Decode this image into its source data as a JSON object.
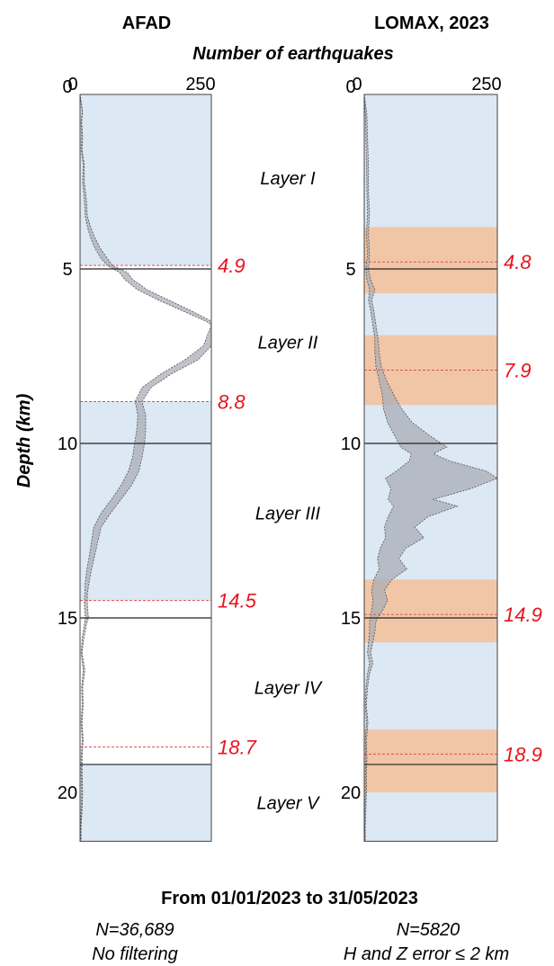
{
  "figure": {
    "xlabel": "Number of earthquakes",
    "ylabel": "Depth (km)",
    "date_range": "From 01/01/2023 to 31/05/2023",
    "colors": {
      "blue_band": "#dce8f4",
      "orange_band": "#f5bf98",
      "red_text": "#e8141e",
      "profile_fill": "#a9aeb6",
      "boundary_dash": "#e05050"
    }
  },
  "layers": [
    {
      "label": "Layer I",
      "depth": 2.4
    },
    {
      "label": "Layer II",
      "depth": 7.1
    },
    {
      "label": "Layer III",
      "depth": 12.0
    },
    {
      "label": "Layer IV",
      "depth": 17.0
    },
    {
      "label": "Layer V",
      "depth": 20.3
    }
  ],
  "chart_data": [
    {
      "type": "area",
      "title": "AFAD",
      "xlim": [
        0,
        250
      ],
      "ylim": [
        0,
        21.4
      ],
      "x_ticks": [
        "0",
        "250"
      ],
      "y_ticks": [
        0,
        5,
        10,
        15,
        20
      ],
      "n_label": "N=36,689",
      "filter_label": "No filtering",
      "boundaries": [
        {
          "depth": 4.9,
          "label": "4.9"
        },
        {
          "depth": 8.8,
          "label": "8.8"
        },
        {
          "depth": 14.5,
          "label": "14.5"
        },
        {
          "depth": 18.7,
          "label": "18.7"
        }
      ],
      "solid_lines": [
        5,
        10,
        15,
        19.2
      ],
      "blue_bands": [
        [
          0,
          4.9
        ],
        [
          8.8,
          14.5
        ],
        [
          19.2,
          21.4
        ]
      ],
      "orange_bands": [],
      "profile": {
        "depth": [
          0,
          0.5,
          0.8,
          1.2,
          1.6,
          2.0,
          2.5,
          3.0,
          3.5,
          3.8,
          4.1,
          4.4,
          4.7,
          4.9,
          5.1,
          5.3,
          5.6,
          5.9,
          6.2,
          6.5,
          6.6,
          7.2,
          7.6,
          8.0,
          8.4,
          8.8,
          9.2,
          9.6,
          10.0,
          10.4,
          10.8,
          11.2,
          11.6,
          12.0,
          12.4,
          12.8,
          13.2,
          13.6,
          14.0,
          14.3,
          14.6,
          15.0,
          15.2,
          15.6,
          16.0,
          16.5,
          17.0,
          17.5,
          18.0,
          18.5,
          19.0,
          19.5,
          20.0,
          20.5,
          21.0,
          21.4
        ],
        "low": [
          0,
          4,
          2,
          3,
          2,
          6,
          5,
          8,
          10,
          14,
          20,
          28,
          40,
          52,
          75,
          85,
          110,
          150,
          195,
          240,
          250,
          235,
          200,
          155,
          118,
          105,
          110,
          108,
          104,
          100,
          92,
          78,
          60,
          40,
          26,
          22,
          18,
          13,
          10,
          9,
          8,
          10,
          8,
          4,
          2,
          6,
          3,
          4,
          2,
          4,
          2,
          2,
          3,
          2,
          1,
          1
        ],
        "high": [
          0,
          5,
          3,
          5,
          4,
          8,
          8,
          12,
          14,
          20,
          28,
          38,
          52,
          62,
          90,
          100,
          128,
          170,
          212,
          250,
          250,
          250,
          225,
          175,
          135,
          118,
          125,
          125,
          123,
          118,
          112,
          98,
          78,
          58,
          40,
          34,
          28,
          22,
          17,
          14,
          14,
          16,
          12,
          7,
          4,
          9,
          5,
          6,
          4,
          6,
          4,
          4,
          5,
          4,
          2,
          2
        ]
      }
    },
    {
      "type": "area",
      "title": "LOMAX, 2023",
      "xlim": [
        0,
        250
      ],
      "ylim": [
        0,
        21.4
      ],
      "x_ticks": [
        "0",
        "250"
      ],
      "y_ticks": [
        0,
        5,
        10,
        15,
        20
      ],
      "n_label": "N=5820",
      "filter_label": "H and Z error ≤ 2 km",
      "boundaries": [
        {
          "depth": 4.8,
          "label": "4.8"
        },
        {
          "depth": 7.9,
          "label": "7.9"
        },
        {
          "depth": 14.9,
          "label": "14.9"
        },
        {
          "depth": 18.9,
          "label": "18.9"
        }
      ],
      "solid_lines": [
        5,
        10,
        15,
        19.2
      ],
      "blue_bands": [
        [
          0,
          21.4
        ]
      ],
      "orange_bands": [
        [
          3.8,
          5.7
        ],
        [
          6.9,
          8.9
        ],
        [
          13.9,
          15.7
        ],
        [
          18.2,
          20.0
        ]
      ],
      "profile": {
        "depth": [
          0,
          0.6,
          1.2,
          2.0,
          2.8,
          3.4,
          4.0,
          4.6,
          5.0,
          5.3,
          5.6,
          5.9,
          6.2,
          6.6,
          7.0,
          7.4,
          7.8,
          8.2,
          8.6,
          9.0,
          9.4,
          9.8,
          10.1,
          10.3,
          10.5,
          10.8,
          11.0,
          11.3,
          11.6,
          11.8,
          12.1,
          12.4,
          12.7,
          13.0,
          13.3,
          13.6,
          13.9,
          14.2,
          14.5,
          14.8,
          15.1,
          15.4,
          15.7,
          16.0,
          16.3,
          16.6,
          17.0,
          17.5,
          18.0,
          18.5,
          19.0,
          19.5,
          20.0,
          20.5,
          21.0,
          21.4
        ],
        "low": [
          0,
          2,
          3,
          4,
          5,
          6,
          4,
          6,
          3,
          5,
          10,
          8,
          12,
          16,
          20,
          20,
          22,
          28,
          34,
          36,
          44,
          58,
          68,
          88,
          85,
          60,
          40,
          50,
          45,
          55,
          45,
          38,
          40,
          30,
          25,
          28,
          18,
          14,
          16,
          14,
          10,
          10,
          8,
          6,
          10,
          6,
          3,
          2,
          4,
          2,
          3,
          2,
          2,
          1,
          1,
          1
        ],
        "high": [
          0,
          5,
          6,
          8,
          8,
          10,
          8,
          10,
          8,
          12,
          20,
          14,
          18,
          22,
          26,
          28,
          32,
          42,
          55,
          70,
          90,
          125,
          155,
          130,
          160,
          230,
          250,
          200,
          130,
          175,
          120,
          95,
          112,
          78,
          65,
          80,
          52,
          38,
          44,
          34,
          22,
          20,
          16,
          12,
          16,
          10,
          6,
          4,
          7,
          4,
          5,
          4,
          4,
          3,
          2,
          2
        ]
      }
    }
  ]
}
